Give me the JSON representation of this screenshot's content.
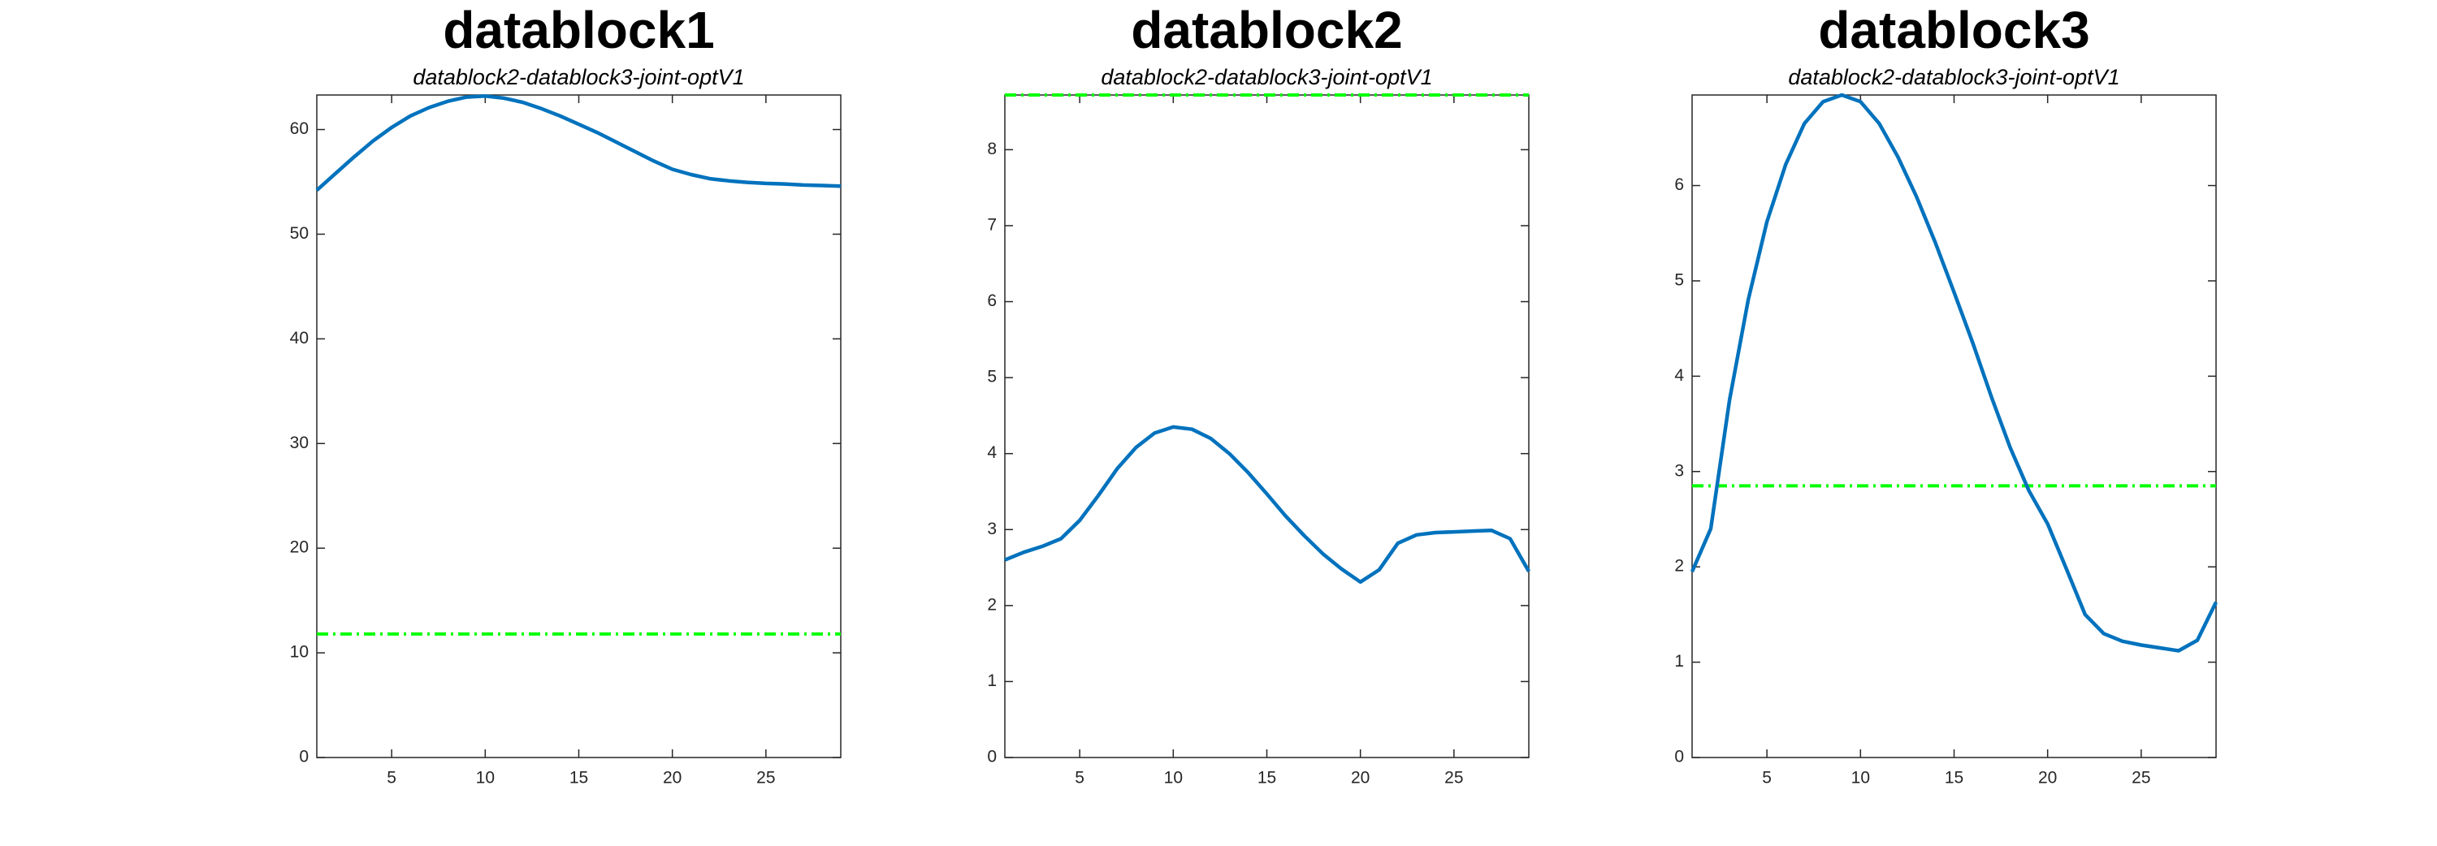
{
  "chart_data": [
    {
      "type": "line",
      "title": "datablock1",
      "subtitle": "datablock2-datablock3-joint-optV1",
      "x": [
        1,
        2,
        3,
        4,
        5,
        6,
        7,
        8,
        9,
        10,
        11,
        12,
        13,
        14,
        15,
        16,
        17,
        18,
        19,
        20,
        21,
        22,
        23,
        24,
        25,
        26,
        27,
        28,
        29
      ],
      "values": [
        54.2,
        55.8,
        57.4,
        58.9,
        60.2,
        61.3,
        62.1,
        62.7,
        63.1,
        63.2,
        63.0,
        62.6,
        62.0,
        61.3,
        60.5,
        59.7,
        58.8,
        57.9,
        57.0,
        56.2,
        55.7,
        55.3,
        55.1,
        54.95,
        54.85,
        54.8,
        54.7,
        54.65,
        54.6
      ],
      "color": "#0072bd",
      "hline": {
        "value": 11.8,
        "color": "#00ff00"
      },
      "xlim": [
        1,
        29
      ],
      "xticks": [
        5,
        10,
        15,
        20,
        25
      ],
      "ylim": [
        0,
        63.3
      ],
      "yticks": [
        0,
        10,
        20,
        30,
        40,
        50,
        60
      ]
    },
    {
      "type": "line",
      "title": "datablock2",
      "subtitle": "datablock2-datablock3-joint-optV1",
      "x": [
        1,
        2,
        3,
        4,
        5,
        6,
        7,
        8,
        9,
        10,
        11,
        12,
        13,
        14,
        15,
        16,
        17,
        18,
        19,
        20,
        21,
        22,
        23,
        24,
        25,
        26,
        27,
        28,
        29
      ],
      "values": [
        2.6,
        2.7,
        2.78,
        2.88,
        3.12,
        3.45,
        3.8,
        4.08,
        4.27,
        4.35,
        4.32,
        4.2,
        4.0,
        3.75,
        3.47,
        3.18,
        2.92,
        2.68,
        2.48,
        2.31,
        2.47,
        2.82,
        2.93,
        2.96,
        2.97,
        2.98,
        2.99,
        2.88,
        2.45
      ],
      "color": "#0072bd",
      "hline": {
        "value": 8.72,
        "color": "#00ff00"
      },
      "xlim": [
        1,
        29
      ],
      "xticks": [
        5,
        10,
        15,
        20,
        25
      ],
      "ylim": [
        0,
        8.72
      ],
      "yticks": [
        0,
        1,
        2,
        3,
        4,
        5,
        6,
        7,
        8
      ]
    },
    {
      "type": "line",
      "title": "datablock3",
      "subtitle": "datablock2-datablock3-joint-optV1",
      "x": [
        1,
        2,
        3,
        4,
        5,
        6,
        7,
        8,
        9,
        10,
        11,
        12,
        13,
        14,
        15,
        16,
        17,
        18,
        19,
        20,
        21,
        22,
        23,
        24,
        25,
        26,
        27,
        28,
        29
      ],
      "values": [
        1.95,
        2.4,
        3.75,
        4.8,
        5.62,
        6.22,
        6.65,
        6.88,
        6.95,
        6.88,
        6.65,
        6.3,
        5.88,
        5.4,
        4.88,
        4.35,
        3.78,
        3.25,
        2.8,
        2.45,
        1.98,
        1.5,
        1.3,
        1.22,
        1.18,
        1.15,
        1.12,
        1.23,
        1.63
      ],
      "color": "#0072bd",
      "hline": {
        "value": 2.85,
        "color": "#00ff00"
      },
      "xlim": [
        1,
        29
      ],
      "xticks": [
        5,
        10,
        15,
        20,
        25
      ],
      "ylim": [
        0,
        6.95
      ],
      "yticks": [
        0,
        1,
        2,
        3,
        4,
        5,
        6
      ]
    }
  ]
}
